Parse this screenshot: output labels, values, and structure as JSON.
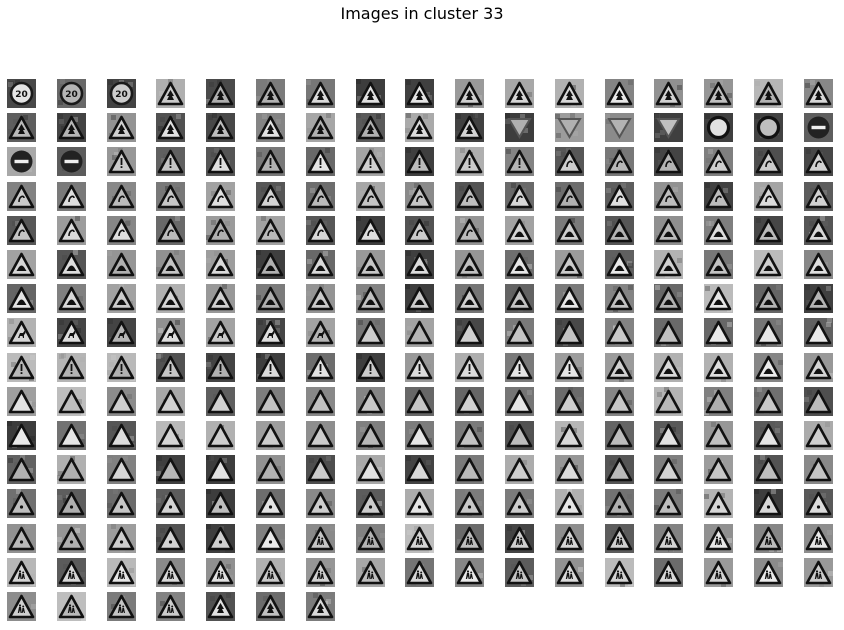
{
  "figure": {
    "title": "Images in cluster 33"
  },
  "grid": {
    "columns": 17,
    "row_counts": [
      17,
      17,
      17,
      17,
      17,
      17,
      17,
      17,
      17,
      17,
      17,
      17,
      17,
      17,
      17,
      7
    ],
    "rows": [
      [
        "limit20",
        "limit20",
        "limit20",
        "tree",
        "tree",
        "tree",
        "tree",
        "tree",
        "tree",
        "tree",
        "tree",
        "tree",
        "tree",
        "tree",
        "tree",
        "tree",
        "tree"
      ],
      [
        "tree",
        "tree",
        "tree",
        "tree",
        "tree",
        "tree",
        "tree",
        "tree",
        "tree",
        "tree",
        "yield",
        "yield",
        "yield",
        "yield",
        "ring",
        "ring",
        "noentry"
      ],
      [
        "noentry",
        "noentry",
        "excl",
        "excl",
        "excl",
        "excl",
        "excl",
        "excl",
        "excl",
        "excl",
        "excl",
        "curve",
        "curve",
        "curve",
        "curve",
        "curve",
        "curve"
      ],
      [
        "curve",
        "curve",
        "curve",
        "curve",
        "curve",
        "curve",
        "curve",
        "curve",
        "curve",
        "curve",
        "curve",
        "curve",
        "curve",
        "curve",
        "curve",
        "curve",
        "curve"
      ],
      [
        "curve",
        "curve",
        "curve",
        "curve",
        "curve",
        "curve",
        "curve",
        "curve",
        "curve",
        "curve",
        "bump",
        "bump",
        "bump",
        "bump",
        "bump",
        "bump",
        "bump"
      ],
      [
        "bump",
        "bump",
        "bump",
        "bump",
        "bump",
        "bump",
        "bump",
        "bump",
        "bump",
        "bump",
        "bump",
        "bump",
        "bump",
        "bump",
        "bump",
        "bump",
        "bump"
      ],
      [
        "bump",
        "bump",
        "bump",
        "bump",
        "bump",
        "bump",
        "bump",
        "bump",
        "bump",
        "bump",
        "bump",
        "bump",
        "bump",
        "bump",
        "bump",
        "bump",
        "bump"
      ],
      [
        "deer",
        "deer",
        "deer",
        "deer",
        "deer",
        "deer",
        "deer",
        "triangle",
        "triangle",
        "triangle",
        "triangle",
        "triangle",
        "triangle",
        "triangle",
        "triangle",
        "triangle",
        "triangle"
      ],
      [
        "excl",
        "excl",
        "excl",
        "excl",
        "excl",
        "excl",
        "excl",
        "excl",
        "excl",
        "excl",
        "excl",
        "excl",
        "bump",
        "bump",
        "bump",
        "bump",
        "bump"
      ],
      [
        "triangle",
        "triangle",
        "triangle",
        "triangle",
        "triangle",
        "triangle",
        "triangle",
        "triangle",
        "triangle",
        "triangle",
        "triangle",
        "triangle",
        "triangle",
        "triangle",
        "triangle",
        "triangle",
        "triangle"
      ],
      [
        "triangle",
        "triangle",
        "triangle",
        "triangle",
        "triangle",
        "triangle",
        "triangle",
        "triangle",
        "triangle",
        "triangle",
        "triangle",
        "triangle",
        "triangle",
        "triangle",
        "triangle",
        "triangle",
        "triangle"
      ],
      [
        "triangle",
        "triangle",
        "triangle",
        "triangle",
        "triangle",
        "triangle",
        "triangle",
        "triangle",
        "triangle",
        "triangle",
        "triangle",
        "triangle",
        "triangle",
        "triangle",
        "triangle",
        "triangle",
        "triangle"
      ],
      [
        "dot",
        "dot",
        "dot",
        "dot",
        "dot",
        "dot",
        "dot",
        "dot",
        "dot",
        "dot",
        "dot",
        "dot",
        "dot",
        "dot",
        "dot",
        "dot",
        "dot"
      ],
      [
        "dot",
        "dot",
        "dot",
        "dot",
        "dot",
        "dot",
        "kids",
        "kids",
        "kids",
        "kids",
        "kids",
        "kids",
        "kids",
        "kids",
        "kids",
        "kids",
        "kids"
      ],
      [
        "kids",
        "kids",
        "kids",
        "kids",
        "kids",
        "kids",
        "kids",
        "kids",
        "kids",
        "kids",
        "kids",
        "kids",
        "kids",
        "kids",
        "kids",
        "kids",
        "kids"
      ],
      [
        "kids",
        "kids",
        "kids",
        "kids",
        "tree",
        "tree",
        "tree"
      ]
    ]
  }
}
